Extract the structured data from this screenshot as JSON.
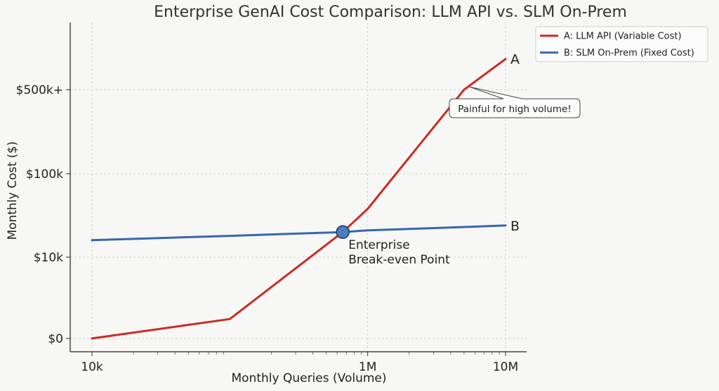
{
  "chart_data": {
    "type": "line",
    "title": "Enterprise GenAI Cost Comparison: LLM API vs. SLM On-Prem",
    "xlabel": "Monthly Queries (Volume)",
    "ylabel": "Monthly Cost ($)",
    "x_scale": "log",
    "x_ticks": [
      {
        "value": 10000,
        "label": "10k"
      },
      {
        "value": 1000000,
        "label": "1M"
      },
      {
        "value": 10000000,
        "label": "10M"
      }
    ],
    "y_ticks": [
      {
        "value": 0,
        "label": "$0"
      },
      {
        "value": 10000,
        "label": "$10k"
      },
      {
        "value": 100000,
        "label": "$100k"
      },
      {
        "value": 500000,
        "label": "$500k+"
      }
    ],
    "grid": true,
    "legend_position": "top-right",
    "series": [
      {
        "name": "A: LLM API (Variable Cost)",
        "end_label": "A",
        "color": "#cc2a22",
        "x": [
          10000,
          100000,
          660000,
          1000000,
          5000000,
          10000000
        ],
        "y": [
          0,
          4000,
          20000,
          38000,
          500000,
          900000
        ]
      },
      {
        "name": "B: SLM On-Prem (Fixed Cost)",
        "end_label": "B",
        "color": "#3567ad",
        "x": [
          10000,
          100000,
          660000,
          1000000,
          5000000,
          10000000
        ],
        "y": [
          16000,
          18000,
          20000,
          21000,
          23000,
          24000
        ]
      }
    ],
    "annotations": [
      {
        "type": "point",
        "text": "Enterprise\nBreak-even Point",
        "x": 660000,
        "y": 20000
      },
      {
        "type": "callout",
        "text": "Painful for high volume!",
        "target_x": 5500000,
        "target_y": 500000
      }
    ]
  }
}
